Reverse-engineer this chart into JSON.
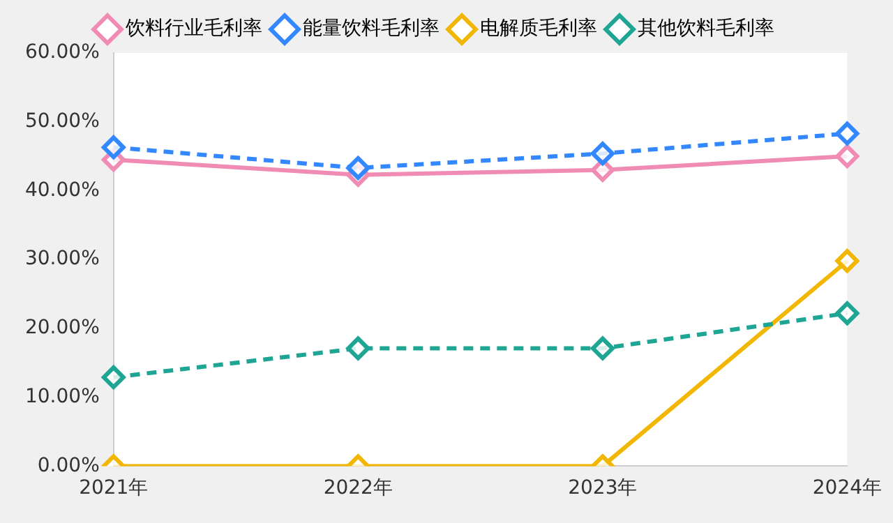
{
  "chart_data": {
    "type": "line",
    "categories": [
      "2021年",
      "2022年",
      "2023年",
      "2024年"
    ],
    "series": [
      {
        "name": "饮料行业毛利率",
        "color": "#f08cb4",
        "line_style": "solid",
        "values": [
          44.5,
          42.3,
          43.0,
          45.0
        ]
      },
      {
        "name": "能量饮料毛利率",
        "color": "#3388ff",
        "line_style": "dashed",
        "values": [
          46.3,
          43.3,
          45.4,
          48.3
        ]
      },
      {
        "name": "电解质毛利率",
        "color": "#f2b705",
        "line_style": "solid",
        "values": [
          0,
          0,
          0,
          29.8
        ]
      },
      {
        "name": "其他饮料毛利率",
        "color": "#1fa594",
        "line_style": "dashed",
        "values": [
          12.9,
          17.1,
          17.1,
          22.2
        ]
      }
    ],
    "ylim": [
      0,
      60
    ],
    "yticks": [
      {
        "value": 0,
        "label": "0.00%"
      },
      {
        "value": 10,
        "label": "10.00%"
      },
      {
        "value": 20,
        "label": "20.00%"
      },
      {
        "value": 30,
        "label": "30.00%"
      },
      {
        "value": 40,
        "label": "40.00%"
      },
      {
        "value": 50,
        "label": "50.00%"
      },
      {
        "value": 60,
        "label": "60.00%"
      }
    ],
    "grid": false,
    "legend": "top",
    "marker": "diamond"
  }
}
